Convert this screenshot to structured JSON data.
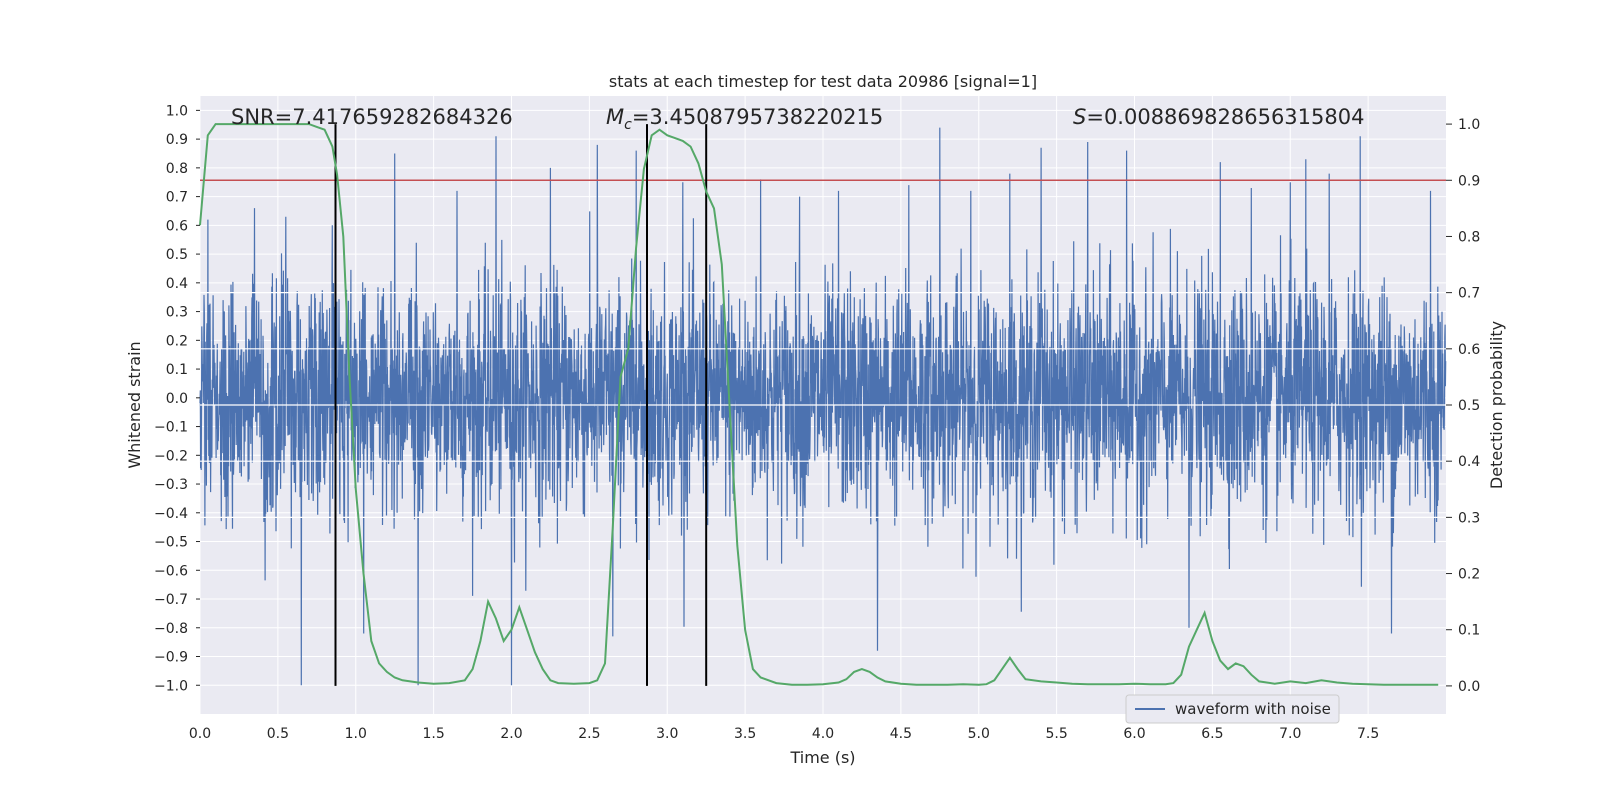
{
  "chart_data": {
    "type": "line",
    "title": "stats at each timestep for test data 20986 [signal=1]",
    "xlabel": "Time (s)",
    "ylabel_left": "Whitened strain",
    "ylabel_right": "Detection probability",
    "xlim": [
      0,
      8.0
    ],
    "ylim_left": [
      -1.1,
      1.05
    ],
    "ylim_right": [
      -0.05,
      1.05
    ],
    "x_ticks": [
      "0.0",
      "0.5",
      "1.0",
      "1.5",
      "2.0",
      "2.5",
      "3.0",
      "3.5",
      "4.0",
      "4.5",
      "5.0",
      "5.5",
      "6.0",
      "6.5",
      "7.0",
      "7.5"
    ],
    "y_left_ticks": [
      "1.0",
      "0.9",
      "0.8",
      "0.7",
      "0.6",
      "0.5",
      "0.4",
      "0.3",
      "0.2",
      "0.1",
      "0.0",
      "-0.1",
      "-0.2",
      "-0.3",
      "-0.4",
      "-0.5",
      "-0.6",
      "-0.7",
      "-0.8",
      "-0.9",
      "-1.0"
    ],
    "y_right_ticks": [
      "1.0",
      "0.9",
      "0.8",
      "0.7",
      "0.6",
      "0.5",
      "0.4",
      "0.3",
      "0.2",
      "0.1",
      "0.0"
    ],
    "grid": true,
    "threshold": 0.9,
    "annotations": {
      "snr": "SNR=7.417659282684326",
      "mc_symbol": "M",
      "mc_sub": "c",
      "mc_value": "=3.4508795738220215",
      "s_symbol": "S",
      "s_value": "=0.008869828656315804"
    },
    "vlines": [
      0.87,
      2.87,
      3.25
    ],
    "legend": {
      "label": "waveform with noise",
      "position": "bottom-right"
    },
    "series": [
      {
        "name": "waveform with noise",
        "axis": "left",
        "color": "#4c72b0",
        "sample_rate": 512,
        "band": 0.36,
        "x_peaks": [
          0.05,
          0.35,
          0.55,
          0.65,
          0.85,
          1.05,
          1.25,
          1.4,
          1.65,
          1.9,
          2.0,
          2.25,
          2.55,
          2.65,
          2.8,
          3.1,
          3.6,
          3.85,
          4.1,
          4.35,
          4.55,
          4.75,
          4.95,
          5.2,
          5.4,
          5.7,
          5.95,
          6.35,
          6.55,
          6.75,
          7.0,
          7.1,
          7.25,
          7.45,
          7.65,
          7.9
        ],
        "y_peaks": [
          0.62,
          0.66,
          0.63,
          -1.0,
          0.6,
          -0.82,
          0.85,
          -1.0,
          0.72,
          0.91,
          -1.0,
          0.8,
          0.88,
          -0.83,
          0.86,
          0.75,
          0.76,
          0.7,
          0.72,
          -0.88,
          0.74,
          0.94,
          0.72,
          0.78,
          0.87,
          0.89,
          0.86,
          -0.8,
          0.82,
          0.73,
          0.75,
          0.83,
          0.78,
          0.91,
          -0.82,
          0.72
        ]
      },
      {
        "name": "detection probability",
        "axis": "right",
        "color": "#55a868",
        "x": [
          0.0,
          0.05,
          0.1,
          0.15,
          0.2,
          0.3,
          0.4,
          0.5,
          0.6,
          0.7,
          0.75,
          0.8,
          0.85,
          0.88,
          0.92,
          0.96,
          1.0,
          1.05,
          1.1,
          1.15,
          1.2,
          1.25,
          1.3,
          1.4,
          1.5,
          1.6,
          1.7,
          1.75,
          1.8,
          1.85,
          1.9,
          1.95,
          2.0,
          2.05,
          2.1,
          2.15,
          2.2,
          2.25,
          2.3,
          2.4,
          2.5,
          2.55,
          2.6,
          2.65,
          2.7,
          2.75,
          2.8,
          2.85,
          2.9,
          2.95,
          3.0,
          3.05,
          3.1,
          3.15,
          3.2,
          3.25,
          3.3,
          3.35,
          3.4,
          3.45,
          3.5,
          3.55,
          3.6,
          3.7,
          3.8,
          3.9,
          4.0,
          4.1,
          4.15,
          4.2,
          4.25,
          4.3,
          4.35,
          4.4,
          4.5,
          4.6,
          4.7,
          4.8,
          4.9,
          5.0,
          5.05,
          5.1,
          5.15,
          5.2,
          5.25,
          5.3,
          5.4,
          5.5,
          5.6,
          5.7,
          5.8,
          5.9,
          6.0,
          6.1,
          6.2,
          6.25,
          6.3,
          6.35,
          6.4,
          6.45,
          6.5,
          6.55,
          6.6,
          6.65,
          6.7,
          6.75,
          6.8,
          6.9,
          7.0,
          7.1,
          7.2,
          7.3,
          7.4,
          7.5,
          7.6,
          7.7,
          7.8,
          7.9,
          7.95
        ],
        "y": [
          0.82,
          0.98,
          1.0,
          1.0,
          1.0,
          1.0,
          1.0,
          1.0,
          1.0,
          1.0,
          0.995,
          0.99,
          0.96,
          0.91,
          0.8,
          0.55,
          0.35,
          0.2,
          0.08,
          0.04,
          0.025,
          0.015,
          0.01,
          0.006,
          0.004,
          0.005,
          0.01,
          0.03,
          0.08,
          0.15,
          0.12,
          0.08,
          0.1,
          0.14,
          0.1,
          0.06,
          0.03,
          0.01,
          0.005,
          0.004,
          0.005,
          0.01,
          0.04,
          0.28,
          0.55,
          0.6,
          0.78,
          0.92,
          0.98,
          0.99,
          0.98,
          0.975,
          0.97,
          0.96,
          0.93,
          0.88,
          0.85,
          0.75,
          0.5,
          0.25,
          0.1,
          0.03,
          0.015,
          0.005,
          0.002,
          0.002,
          0.003,
          0.006,
          0.012,
          0.025,
          0.03,
          0.025,
          0.015,
          0.008,
          0.004,
          0.002,
          0.002,
          0.002,
          0.003,
          0.002,
          0.003,
          0.01,
          0.03,
          0.05,
          0.03,
          0.012,
          0.008,
          0.006,
          0.004,
          0.003,
          0.003,
          0.003,
          0.004,
          0.003,
          0.003,
          0.005,
          0.02,
          0.07,
          0.1,
          0.13,
          0.08,
          0.045,
          0.03,
          0.04,
          0.035,
          0.02,
          0.008,
          0.004,
          0.008,
          0.005,
          0.01,
          0.006,
          0.004,
          0.003,
          0.002,
          0.002,
          0.002,
          0.002,
          0.002
        ]
      }
    ]
  }
}
